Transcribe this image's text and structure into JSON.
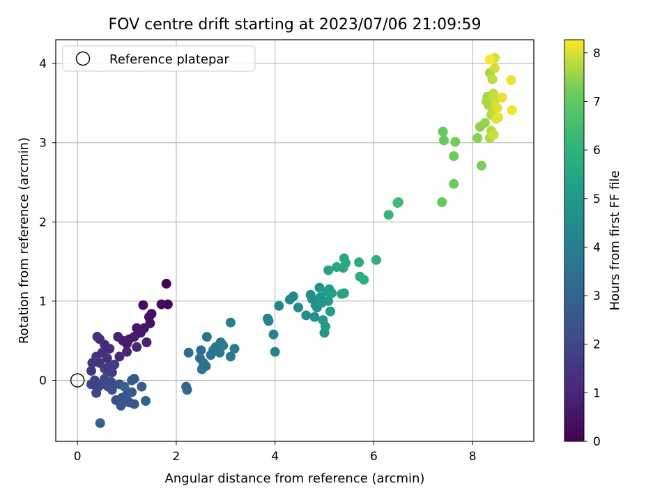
{
  "chart_data": {
    "type": "scatter",
    "title": "FOV centre drift starting at 2023/07/06 21:09:59",
    "xlabel": "Angular distance from reference (arcmin)",
    "ylabel": "Rotation from reference (arcmin)",
    "xlim": [
      -0.44,
      9.24
    ],
    "ylim": [
      -0.77,
      4.3
    ],
    "xticks": [
      0,
      2,
      4,
      6,
      8
    ],
    "xtick_labels": [
      "0",
      "2",
      "4",
      "6",
      "8"
    ],
    "yticks": [
      0,
      1,
      2,
      3,
      4
    ],
    "ytick_labels": [
      "0",
      "1",
      "2",
      "3",
      "4"
    ],
    "grid": true,
    "legend": {
      "position": "top-left",
      "entries": [
        "Reference platepar"
      ]
    },
    "reference_point": {
      "x": 0,
      "y": 0,
      "label": "Reference platepar"
    },
    "colorbar": {
      "label": "Hours from first FF file",
      "range": [
        0,
        8.27
      ],
      "ticks": [
        0,
        1,
        2,
        3,
        4,
        5,
        6,
        7,
        8
      ],
      "tick_labels": [
        "0",
        "1",
        "2",
        "3",
        "4",
        "5",
        "6",
        "7",
        "8"
      ],
      "colormap": "viridis"
    },
    "points": [
      {
        "x": 1.8,
        "y": 1.22,
        "c": 0.1
      },
      {
        "x": 1.83,
        "y": 0.96,
        "c": 0.15
      },
      {
        "x": 1.7,
        "y": 0.96,
        "c": 0.2
      },
      {
        "x": 1.33,
        "y": 0.95,
        "c": 0.3
      },
      {
        "x": 1.5,
        "y": 0.84,
        "c": 0.35
      },
      {
        "x": 1.45,
        "y": 0.8,
        "c": 0.4
      },
      {
        "x": 1.47,
        "y": 0.72,
        "c": 0.45
      },
      {
        "x": 1.35,
        "y": 0.66,
        "c": 0.5
      },
      {
        "x": 1.2,
        "y": 0.66,
        "c": 0.55
      },
      {
        "x": 1.28,
        "y": 0.6,
        "c": 0.6
      },
      {
        "x": 1.15,
        "y": 0.55,
        "c": 0.65
      },
      {
        "x": 1.05,
        "y": 0.52,
        "c": 0.7
      },
      {
        "x": 1.0,
        "y": 0.46,
        "c": 0.75
      },
      {
        "x": 0.92,
        "y": 0.5,
        "c": 0.8
      },
      {
        "x": 0.82,
        "y": 0.55,
        "c": 0.85
      },
      {
        "x": 1.4,
        "y": 0.48,
        "c": 0.9
      },
      {
        "x": 1.2,
        "y": 0.42,
        "c": 0.95
      },
      {
        "x": 1.0,
        "y": 0.36,
        "c": 1.0
      },
      {
        "x": 0.85,
        "y": 0.3,
        "c": 1.05
      },
      {
        "x": 0.65,
        "y": 0.4,
        "c": 1.1
      },
      {
        "x": 0.55,
        "y": 0.45,
        "c": 1.15
      },
      {
        "x": 0.45,
        "y": 0.52,
        "c": 1.2
      },
      {
        "x": 0.4,
        "y": 0.55,
        "c": 1.25
      },
      {
        "x": 0.5,
        "y": 0.35,
        "c": 1.3
      },
      {
        "x": 0.6,
        "y": 0.28,
        "c": 1.35
      },
      {
        "x": 0.45,
        "y": 0.22,
        "c": 1.4
      },
      {
        "x": 0.38,
        "y": 0.3,
        "c": 1.45
      },
      {
        "x": 0.3,
        "y": 0.22,
        "c": 1.5
      },
      {
        "x": 0.28,
        "y": 0.12,
        "c": 1.55
      },
      {
        "x": 0.55,
        "y": 0.15,
        "c": 1.6
      },
      {
        "x": 0.65,
        "y": 0.18,
        "c": 1.65
      },
      {
        "x": 0.75,
        "y": 0.2,
        "c": 1.7
      },
      {
        "x": 0.7,
        "y": 0.1,
        "c": 1.75
      },
      {
        "x": 0.6,
        "y": 0.12,
        "c": 1.8
      },
      {
        "x": 0.35,
        "y": 0.0,
        "c": 1.85
      },
      {
        "x": 0.28,
        "y": -0.05,
        "c": 1.9
      },
      {
        "x": 0.4,
        "y": -0.1,
        "c": 1.95
      },
      {
        "x": 0.38,
        "y": -0.16,
        "c": 2.0
      },
      {
        "x": 0.5,
        "y": -0.05,
        "c": 2.05
      },
      {
        "x": 0.55,
        "y": 0.02,
        "c": 2.1
      },
      {
        "x": 0.62,
        "y": -0.08,
        "c": 2.15
      },
      {
        "x": 0.7,
        "y": -0.12,
        "c": 2.2
      },
      {
        "x": 0.68,
        "y": -0.02,
        "c": 2.25
      },
      {
        "x": 0.78,
        "y": -0.25,
        "c": 2.3
      },
      {
        "x": 0.85,
        "y": -0.05,
        "c": 2.35
      },
      {
        "x": 0.9,
        "y": -0.22,
        "c": 2.4
      },
      {
        "x": 0.88,
        "y": -0.32,
        "c": 2.45
      },
      {
        "x": 1.0,
        "y": -0.18,
        "c": 2.5
      },
      {
        "x": 1.05,
        "y": -0.28,
        "c": 2.55
      },
      {
        "x": 1.15,
        "y": -0.3,
        "c": 2.6
      },
      {
        "x": 1.1,
        "y": -0.15,
        "c": 2.65
      },
      {
        "x": 1.1,
        "y": 0.0,
        "c": 2.7
      },
      {
        "x": 1.15,
        "y": 0.02,
        "c": 2.75
      },
      {
        "x": 1.3,
        "y": -0.08,
        "c": 2.8
      },
      {
        "x": 1.38,
        "y": -0.26,
        "c": 2.85
      },
      {
        "x": 0.46,
        "y": -0.54,
        "c": 2.9
      },
      {
        "x": 0.95,
        "y": -0.08,
        "c": 2.95
      },
      {
        "x": 2.2,
        "y": -0.08,
        "c": 3.1
      },
      {
        "x": 2.22,
        "y": -0.12,
        "c": 3.15
      },
      {
        "x": 2.25,
        "y": 0.35,
        "c": 3.2
      },
      {
        "x": 2.5,
        "y": 0.38,
        "c": 3.3
      },
      {
        "x": 2.48,
        "y": 0.28,
        "c": 3.35
      },
      {
        "x": 2.55,
        "y": 0.22,
        "c": 3.4
      },
      {
        "x": 2.6,
        "y": 0.18,
        "c": 3.45
      },
      {
        "x": 2.52,
        "y": 0.14,
        "c": 3.5
      },
      {
        "x": 2.62,
        "y": 0.55,
        "c": 3.55
      },
      {
        "x": 2.7,
        "y": 0.32,
        "c": 3.6
      },
      {
        "x": 2.75,
        "y": 0.38,
        "c": 3.65
      },
      {
        "x": 2.8,
        "y": 0.42,
        "c": 3.7
      },
      {
        "x": 2.88,
        "y": 0.35,
        "c": 3.75
      },
      {
        "x": 2.9,
        "y": 0.48,
        "c": 3.8
      },
      {
        "x": 2.95,
        "y": 0.44,
        "c": 3.85
      },
      {
        "x": 3.1,
        "y": 0.3,
        "c": 3.9
      },
      {
        "x": 3.18,
        "y": 0.4,
        "c": 3.95
      },
      {
        "x": 3.1,
        "y": 0.73,
        "c": 4.0
      },
      {
        "x": 3.85,
        "y": 0.78,
        "c": 4.1
      },
      {
        "x": 3.87,
        "y": 0.75,
        "c": 4.15
      },
      {
        "x": 3.97,
        "y": 0.58,
        "c": 4.2
      },
      {
        "x": 4.0,
        "y": 0.36,
        "c": 4.25
      },
      {
        "x": 4.08,
        "y": 0.94,
        "c": 4.3
      },
      {
        "x": 4.3,
        "y": 1.02,
        "c": 4.35
      },
      {
        "x": 4.37,
        "y": 1.06,
        "c": 4.4
      },
      {
        "x": 4.47,
        "y": 0.92,
        "c": 4.45
      },
      {
        "x": 4.63,
        "y": 0.82,
        "c": 4.5
      },
      {
        "x": 4.72,
        "y": 1.08,
        "c": 4.55
      },
      {
        "x": 4.75,
        "y": 1.03,
        "c": 4.6
      },
      {
        "x": 4.8,
        "y": 0.8,
        "c": 4.65
      },
      {
        "x": 4.82,
        "y": 0.95,
        "c": 4.7
      },
      {
        "x": 4.85,
        "y": 0.92,
        "c": 4.75
      },
      {
        "x": 4.9,
        "y": 1.17,
        "c": 4.8
      },
      {
        "x": 4.92,
        "y": 1.05,
        "c": 4.85
      },
      {
        "x": 4.95,
        "y": 0.98,
        "c": 4.9
      },
      {
        "x": 4.97,
        "y": 0.76,
        "c": 4.95
      },
      {
        "x": 5.0,
        "y": 0.6,
        "c": 5.0
      },
      {
        "x": 5.02,
        "y": 0.68,
        "c": 5.05
      },
      {
        "x": 5.05,
        "y": 1.12,
        "c": 5.1
      },
      {
        "x": 5.08,
        "y": 1.0,
        "c": 5.15
      },
      {
        "x": 5.1,
        "y": 1.15,
        "c": 5.2
      },
      {
        "x": 5.12,
        "y": 0.87,
        "c": 5.25
      },
      {
        "x": 5.15,
        "y": 1.1,
        "c": 5.3
      },
      {
        "x": 5.08,
        "y": 1.39,
        "c": 5.35
      },
      {
        "x": 5.35,
        "y": 1.09,
        "c": 5.4
      },
      {
        "x": 5.4,
        "y": 1.1,
        "c": 5.45
      },
      {
        "x": 5.25,
        "y": 1.43,
        "c": 5.5
      },
      {
        "x": 5.38,
        "y": 1.42,
        "c": 5.55
      },
      {
        "x": 5.4,
        "y": 1.54,
        "c": 5.6
      },
      {
        "x": 5.43,
        "y": 1.48,
        "c": 5.65
      },
      {
        "x": 5.7,
        "y": 1.49,
        "c": 5.7
      },
      {
        "x": 5.72,
        "y": 1.31,
        "c": 5.75
      },
      {
        "x": 5.8,
        "y": 1.27,
        "c": 5.8
      },
      {
        "x": 6.05,
        "y": 1.52,
        "c": 5.85
      },
      {
        "x": 6.3,
        "y": 2.09,
        "c": 6.1
      },
      {
        "x": 6.5,
        "y": 2.25,
        "c": 6.3
      },
      {
        "x": 6.48,
        "y": 2.24,
        "c": 6.35
      },
      {
        "x": 7.38,
        "y": 2.25,
        "c": 7.0
      },
      {
        "x": 7.4,
        "y": 3.14,
        "c": 7.05
      },
      {
        "x": 7.42,
        "y": 3.03,
        "c": 7.1
      },
      {
        "x": 7.62,
        "y": 2.48,
        "c": 7.15
      },
      {
        "x": 7.62,
        "y": 2.83,
        "c": 7.2
      },
      {
        "x": 7.65,
        "y": 3.01,
        "c": 7.25
      },
      {
        "x": 8.1,
        "y": 3.06,
        "c": 7.4
      },
      {
        "x": 8.15,
        "y": 3.2,
        "c": 7.45
      },
      {
        "x": 8.18,
        "y": 2.71,
        "c": 7.3
      },
      {
        "x": 8.25,
        "y": 3.25,
        "c": 7.5
      },
      {
        "x": 8.3,
        "y": 3.58,
        "c": 7.55
      },
      {
        "x": 8.32,
        "y": 3.48,
        "c": 7.6
      },
      {
        "x": 8.35,
        "y": 3.88,
        "c": 7.65
      },
      {
        "x": 8.35,
        "y": 3.06,
        "c": 7.7
      },
      {
        "x": 8.38,
        "y": 3.15,
        "c": 7.72
      },
      {
        "x": 8.38,
        "y": 3.35,
        "c": 7.75
      },
      {
        "x": 8.4,
        "y": 3.41,
        "c": 7.8
      },
      {
        "x": 8.4,
        "y": 3.8,
        "c": 7.82
      },
      {
        "x": 8.42,
        "y": 3.55,
        "c": 7.85
      },
      {
        "x": 8.42,
        "y": 3.62,
        "c": 7.88
      },
      {
        "x": 8.43,
        "y": 3.1,
        "c": 7.9
      },
      {
        "x": 8.44,
        "y": 3.5,
        "c": 7.92
      },
      {
        "x": 8.45,
        "y": 3.94,
        "c": 7.95
      },
      {
        "x": 8.45,
        "y": 4.07,
        "c": 8.0
      },
      {
        "x": 8.48,
        "y": 3.3,
        "c": 8.02
      },
      {
        "x": 8.5,
        "y": 3.44,
        "c": 8.05
      },
      {
        "x": 8.52,
        "y": 3.32,
        "c": 8.08
      },
      {
        "x": 8.6,
        "y": 3.57,
        "c": 8.1
      },
      {
        "x": 8.78,
        "y": 3.79,
        "c": 8.15
      },
      {
        "x": 8.8,
        "y": 3.41,
        "c": 8.2
      },
      {
        "x": 8.35,
        "y": 4.05,
        "c": 8.25
      },
      {
        "x": 8.28,
        "y": 3.52,
        "c": 7.68
      }
    ]
  }
}
